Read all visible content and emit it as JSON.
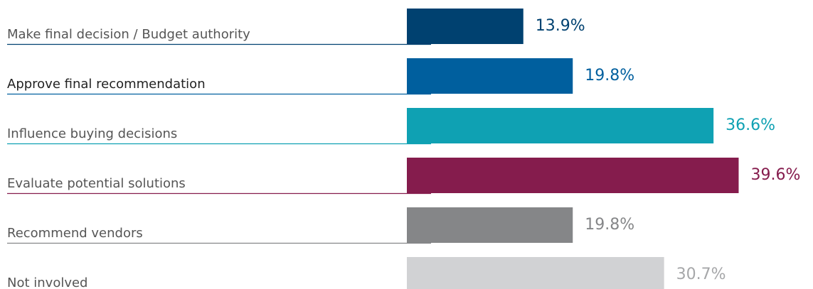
{
  "chart_data": {
    "type": "bar",
    "orientation": "horizontal",
    "categories": [
      "Make final decision / Budget authority",
      "Approve final recommendation",
      "Influence buying decisions",
      "Evaluate potential solutions",
      "Recommend vendors",
      "Not involved"
    ],
    "values": [
      13.9,
      19.8,
      36.6,
      39.6,
      19.8,
      30.7
    ],
    "value_labels": [
      "13.9%",
      "19.8%",
      "36.6%",
      "39.6%",
      "19.8%",
      "30.7%"
    ],
    "colors": [
      "#004170",
      "#005f9e",
      "#0fa1b3",
      "#851c4d",
      "#858688",
      "#d1d2d4"
    ],
    "label_colors": [
      "#004170",
      "#005f9e",
      "#0fa1b3",
      "#851c4d",
      "#858688",
      "#a6a7a9"
    ],
    "category_label_colors": [
      "#555555",
      "#222222",
      "#555555",
      "#555555",
      "#555555",
      "#555555"
    ],
    "xlim": [
      0,
      40
    ],
    "title": "",
    "xlabel": "",
    "ylabel": "",
    "grid": false,
    "legend": "none"
  }
}
